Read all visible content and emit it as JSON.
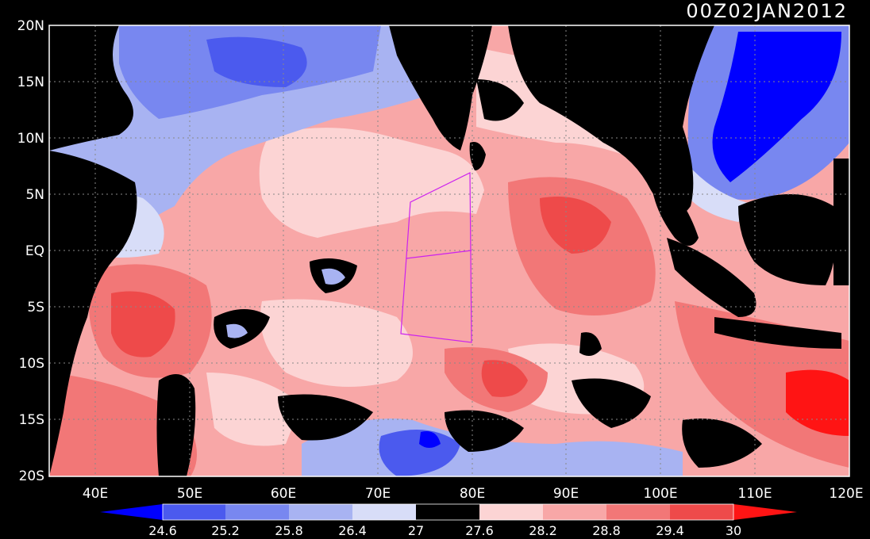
{
  "timestamp": "00Z02JAN2012",
  "lat_labels": [
    "20N",
    "15N",
    "10N",
    "5N",
    "EQ",
    "5S",
    "10S",
    "15S",
    "20S"
  ],
  "lon_labels": [
    "40E",
    "50E",
    "60E",
    "70E",
    "80E",
    "90E",
    "100E",
    "110E",
    "120E"
  ],
  "colorbar": {
    "ticks": [
      "24.6",
      "25.2",
      "25.8",
      "26.4",
      "27",
      "27.6",
      "28.2",
      "28.8",
      "29.4",
      "30"
    ],
    "colors": [
      "#0000ff",
      "#4b5aee",
      "#7887f0",
      "#a8b3f2",
      "#d8ddf8",
      "#000000",
      "#fcd4d4",
      "#f8a7a7",
      "#f27777",
      "#ee4a4a",
      "#ff1414"
    ]
  },
  "map": {
    "land_color": "#000000",
    "box_color": "#cc22ee",
    "warm_core": "#ee4a4a",
    "warm_mid": "#f27777",
    "warm_light": "#f8a7a7",
    "pale": "#fcd4d4",
    "cool_pale": "#d8ddf8",
    "cool_light": "#a8b3f2",
    "cool_mid": "#7887f0",
    "cool_deep": "#4b5aee",
    "blue": "#0000ff",
    "hot": "#ff1414"
  }
}
